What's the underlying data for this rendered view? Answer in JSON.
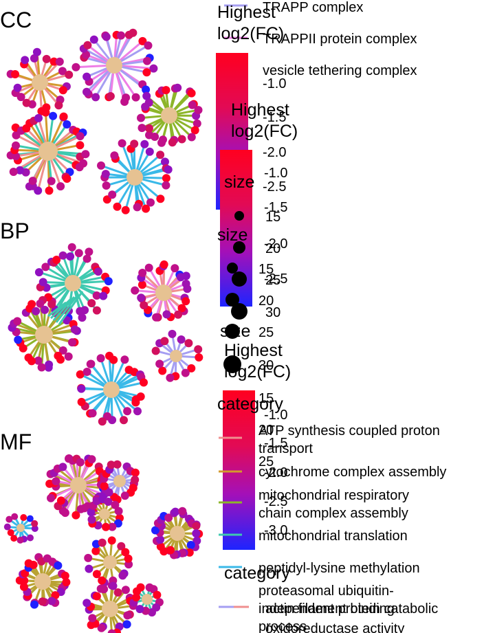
{
  "panels": [
    {
      "label": "CC"
    },
    {
      "label": "BP"
    },
    {
      "label": "MF"
    }
  ],
  "legends": {
    "cc_category_items": [
      "TRAPP complex",
      "TRAPPII protein complex",
      "vesicle tethering complex"
    ],
    "cc_color": {
      "title_line1": "Highest",
      "title_line2": "log2(FC)",
      "ticks": [
        "-1.0",
        "-1.5",
        "-2.0",
        "-2.5"
      ]
    },
    "cc_size": {
      "title": "size"
    },
    "bp_color": {
      "title_line1": "Highest",
      "title_line2": "log2(FC)",
      "ticks": [
        "-1.0",
        "-1.5",
        "-2.0",
        "-2.5"
      ]
    },
    "bp_size": {
      "title": "size",
      "ticks": [
        "15",
        "20",
        "25",
        "30"
      ]
    },
    "overlap_size_ticks": [
      "15",
      "20",
      "25"
    ],
    "mf_size": {
      "title": "size",
      "ticks": [
        "15",
        "20",
        "25",
        "30"
      ]
    },
    "mf_color": {
      "title_line1": "Highest",
      "title_line2": "log2(FC)",
      "ticks": [
        "-1.0",
        "-1.5",
        "-2.0",
        "-2.5",
        "-3.0"
      ]
    },
    "bp_category": {
      "title": "category",
      "items": [
        "ATP synthesis coupled proton",
        "transport",
        "cytochrome complex assembly",
        "mitochondrial respiratory",
        "chain complex assembly",
        "mitochondrial translation",
        "peptidyl-lysine methylation",
        "proteasomal ubiquitin-",
        "independent protein catabolic",
        "process"
      ]
    },
    "mf_category": {
      "title": "category",
      "items": [
        "actin filament binding",
        "oxidoreductase activity"
      ]
    }
  },
  "colors": {
    "node_center": "#e6c292",
    "fc_high": "#ff0022",
    "fc_mid": "#c0108a",
    "fc_low": "#2020ff",
    "edge_pink": "#ee7fe6",
    "edge_lavender": "#a59ef2",
    "edge_green": "#8db52a",
    "edge_teal": "#3ec9b0",
    "edge_salmon": "#ef8f8f",
    "edge_orange": "#d39a2d",
    "edge_blue": "#3ab9e8",
    "edge_olive": "#b9a233"
  }
}
